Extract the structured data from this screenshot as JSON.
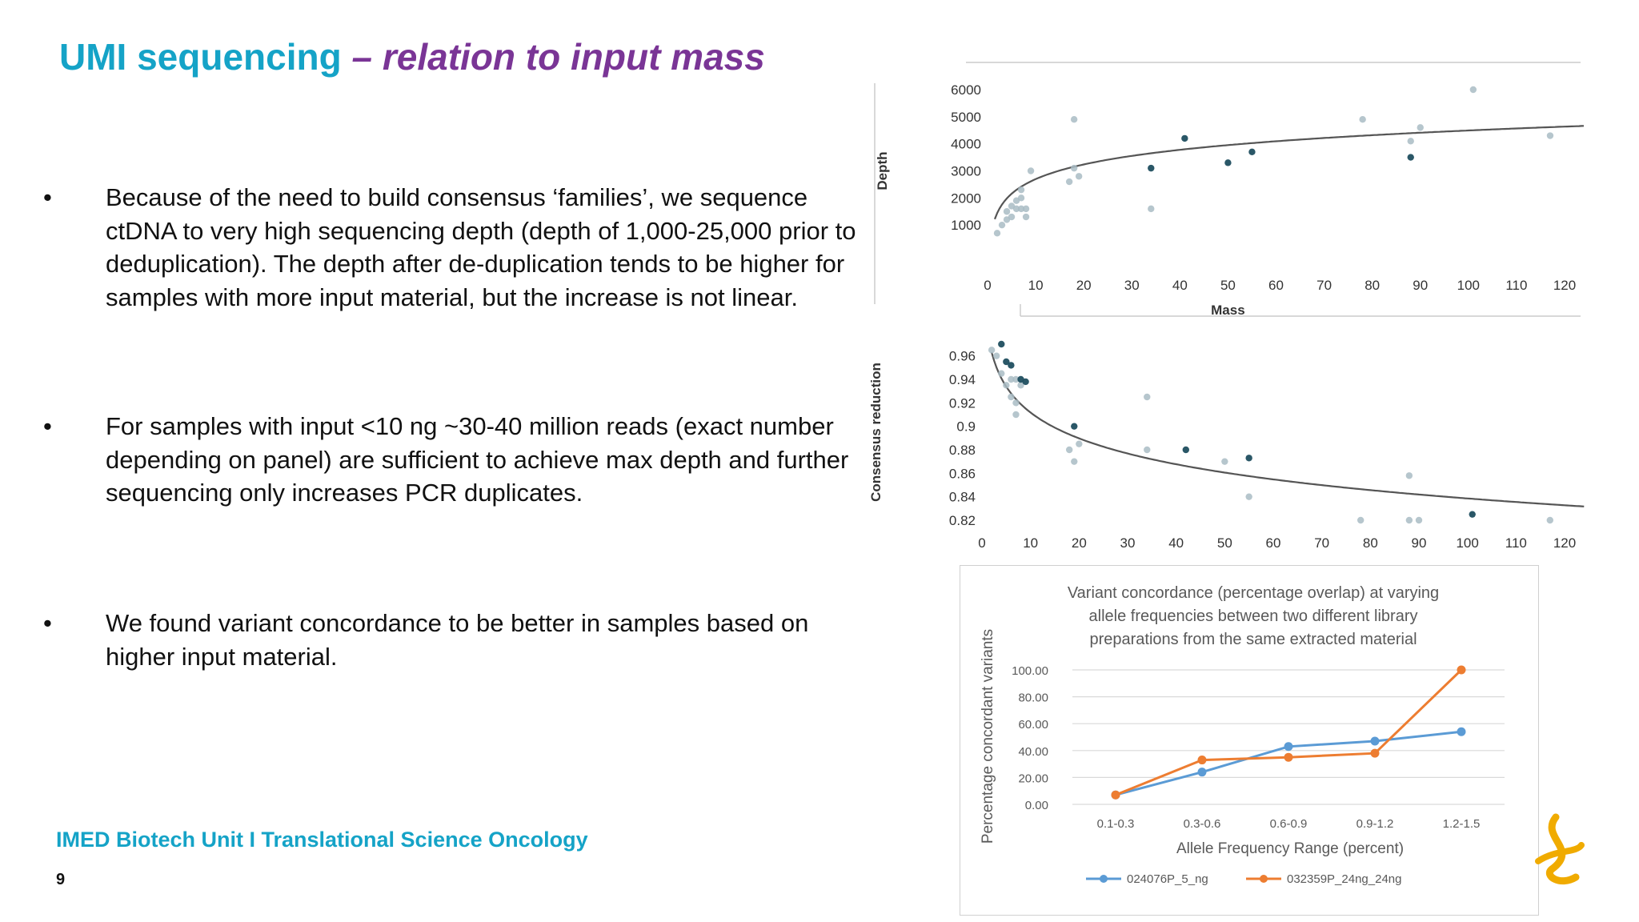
{
  "slide": {
    "title_main": "UMI sequencing",
    "title_dash": " – ",
    "title_sub": "relation to input mass",
    "bullets": [
      "Because of the need to build consensus ‘families’, we sequence ctDNA to very high sequencing depth (depth of 1,000-25,000 prior to deduplication).  The depth after de-duplication tends to be higher for samples with more input material, but the increase is not linear.",
      "For samples with input <10 ng ~30-40 million reads (exact number depending on panel) are sufficient to achieve max depth and further sequencing only increases PCR duplicates.",
      "We found variant concordance to be better in samples based on higher input material."
    ],
    "bullet_symbol": "•",
    "footer_org": "IMED Biotech Unit I Translational Science Oncology",
    "page_number": "9",
    "logo_icon": "astrazeneca-logo"
  },
  "colors": {
    "title_blue": "#15a3c7",
    "title_purple": "#7a3596",
    "scatter_dark": "#1f4e5f",
    "scatter_light": "#a9bcc4",
    "series_blue": "#5b9bd5",
    "series_orange": "#ed7d31",
    "logo_yellow": "#f0ab00"
  },
  "chart_data": [
    {
      "type": "scatter",
      "title": "",
      "xlabel": "Mass",
      "ylabel": "Depth",
      "xlim": [
        0,
        120
      ],
      "ylim": [
        0,
        6000
      ],
      "xticks": [
        "0",
        "10",
        "20",
        "30",
        "40",
        "50",
        "60",
        "70",
        "80",
        "90",
        "100",
        "110",
        "120"
      ],
      "yticks": [
        "1000",
        "2000",
        "3000",
        "4000",
        "5000",
        "6000"
      ],
      "trend": "logarithmic",
      "points": [
        {
          "x": 2,
          "y": 700,
          "s": "l"
        },
        {
          "x": 3,
          "y": 1000,
          "s": "l"
        },
        {
          "x": 4,
          "y": 1200,
          "s": "l"
        },
        {
          "x": 4,
          "y": 1500,
          "s": "l"
        },
        {
          "x": 5,
          "y": 1300,
          "s": "l"
        },
        {
          "x": 5,
          "y": 1700,
          "s": "l"
        },
        {
          "x": 6,
          "y": 1600,
          "s": "l"
        },
        {
          "x": 6,
          "y": 1900,
          "s": "l"
        },
        {
          "x": 7,
          "y": 1600,
          "s": "l"
        },
        {
          "x": 7,
          "y": 2000,
          "s": "l"
        },
        {
          "x": 7,
          "y": 2300,
          "s": "l"
        },
        {
          "x": 8,
          "y": 1300,
          "s": "l"
        },
        {
          "x": 8,
          "y": 1600,
          "s": "l"
        },
        {
          "x": 9,
          "y": 3000,
          "s": "l"
        },
        {
          "x": 17,
          "y": 2600,
          "s": "l"
        },
        {
          "x": 18,
          "y": 3100,
          "s": "l"
        },
        {
          "x": 18,
          "y": 4900,
          "s": "l"
        },
        {
          "x": 19,
          "y": 2800,
          "s": "l"
        },
        {
          "x": 34,
          "y": 3100,
          "s": "d"
        },
        {
          "x": 34,
          "y": 1600,
          "s": "l"
        },
        {
          "x": 41,
          "y": 4200,
          "s": "d"
        },
        {
          "x": 50,
          "y": 3300,
          "s": "d"
        },
        {
          "x": 55,
          "y": 3700,
          "s": "d"
        },
        {
          "x": 78,
          "y": 4900,
          "s": "l"
        },
        {
          "x": 88,
          "y": 4100,
          "s": "l"
        },
        {
          "x": 88,
          "y": 3500,
          "s": "d"
        },
        {
          "x": 90,
          "y": 4600,
          "s": "l"
        },
        {
          "x": 101,
          "y": 6000,
          "s": "l"
        },
        {
          "x": 117,
          "y": 4300,
          "s": "l"
        }
      ]
    },
    {
      "type": "scatter",
      "title": "",
      "xlabel": "",
      "ylabel": "Consensus reduction",
      "xlim": [
        0,
        120
      ],
      "ylim": [
        0.82,
        0.97
      ],
      "xticks": [
        "0",
        "10",
        "20",
        "30",
        "40",
        "50",
        "60",
        "70",
        "80",
        "90",
        "100",
        "110",
        "120"
      ],
      "yticks": [
        "0.82",
        "0.84",
        "0.86",
        "0.88",
        "0.9",
        "0.92",
        "0.94",
        "0.96"
      ],
      "trend": "logarithmic",
      "points": [
        {
          "x": 2,
          "y": 0.965,
          "s": "l"
        },
        {
          "x": 3,
          "y": 0.96,
          "s": "l"
        },
        {
          "x": 4,
          "y": 0.97,
          "s": "d"
        },
        {
          "x": 4,
          "y": 0.945,
          "s": "l"
        },
        {
          "x": 5,
          "y": 0.955,
          "s": "d"
        },
        {
          "x": 5,
          "y": 0.935,
          "s": "l"
        },
        {
          "x": 6,
          "y": 0.952,
          "s": "d"
        },
        {
          "x": 6,
          "y": 0.94,
          "s": "l"
        },
        {
          "x": 6,
          "y": 0.925,
          "s": "l"
        },
        {
          "x": 7,
          "y": 0.94,
          "s": "l"
        },
        {
          "x": 7,
          "y": 0.92,
          "s": "l"
        },
        {
          "x": 8,
          "y": 0.935,
          "s": "l"
        },
        {
          "x": 8,
          "y": 0.94,
          "s": "d"
        },
        {
          "x": 9,
          "y": 0.938,
          "s": "d"
        },
        {
          "x": 7,
          "y": 0.91,
          "s": "l"
        },
        {
          "x": 18,
          "y": 0.88,
          "s": "l"
        },
        {
          "x": 19,
          "y": 0.87,
          "s": "l"
        },
        {
          "x": 19,
          "y": 0.9,
          "s": "d"
        },
        {
          "x": 20,
          "y": 0.885,
          "s": "l"
        },
        {
          "x": 34,
          "y": 0.925,
          "s": "l"
        },
        {
          "x": 34,
          "y": 0.88,
          "s": "l"
        },
        {
          "x": 42,
          "y": 0.88,
          "s": "d"
        },
        {
          "x": 50,
          "y": 0.87,
          "s": "l"
        },
        {
          "x": 55,
          "y": 0.873,
          "s": "d"
        },
        {
          "x": 55,
          "y": 0.84,
          "s": "l"
        },
        {
          "x": 78,
          "y": 0.82,
          "s": "l"
        },
        {
          "x": 88,
          "y": 0.82,
          "s": "l"
        },
        {
          "x": 90,
          "y": 0.82,
          "s": "l"
        },
        {
          "x": 88,
          "y": 0.858,
          "s": "l"
        },
        {
          "x": 101,
          "y": 0.825,
          "s": "d"
        },
        {
          "x": 117,
          "y": 0.82,
          "s": "l"
        }
      ]
    },
    {
      "type": "line",
      "title_lines": [
        "Variant concordance (percentage overlap) at varying",
        "allele frequencies  between two different library",
        "preparations from the same extracted material"
      ],
      "xlabel": "Allele Frequency Range (percent)",
      "ylabel": "Percentage concordant variants",
      "categories": [
        "0.1-0.3",
        "0.3-0.6",
        "0.6-0.9",
        "0.9-1.2",
        "1.2-1.5"
      ],
      "ylim": [
        0,
        100
      ],
      "yticks": [
        "0.00",
        "20.00",
        "40.00",
        "60.00",
        "80.00",
        "100.00"
      ],
      "legend": "bottom",
      "series": [
        {
          "name": "024076P_5_ng",
          "color": "#5b9bd5",
          "values": [
            7,
            24,
            43,
            47,
            54
          ]
        },
        {
          "name": "032359P_24ng_24ng",
          "color": "#ed7d31",
          "values": [
            7,
            33,
            35,
            38,
            100
          ]
        }
      ]
    }
  ]
}
